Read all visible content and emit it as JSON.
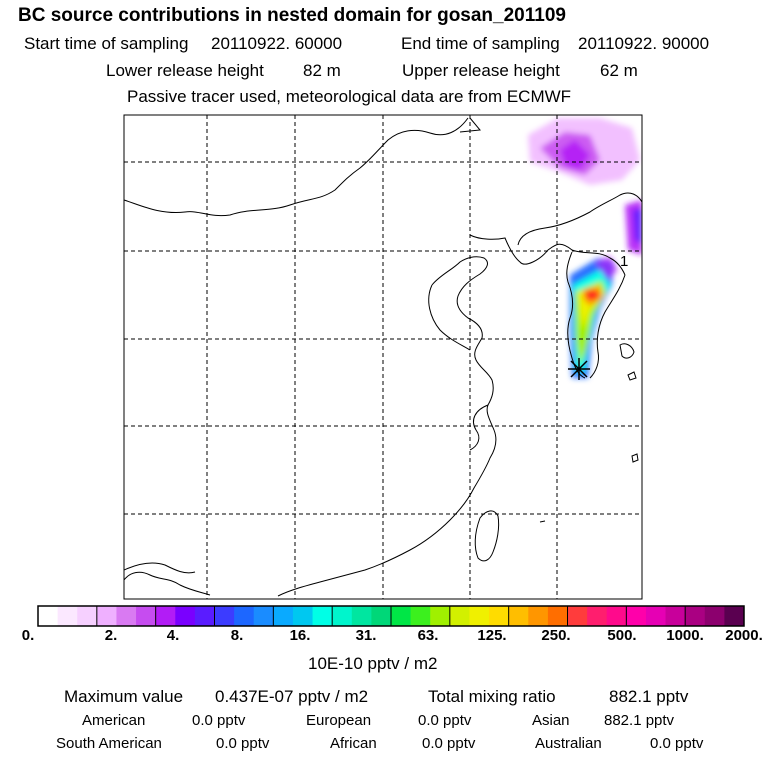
{
  "title": "BC  source contributions in nested domain for gosan_201109",
  "sampling": {
    "start_label": "Start time of sampling",
    "start_value": "20110922. 60000",
    "end_label": "End time of sampling",
    "end_value": "20110922. 90000"
  },
  "release": {
    "lower_label": "Lower release height",
    "lower_value": "82 m",
    "upper_label": "Upper release height",
    "upper_value": "62 m"
  },
  "tracer_note": "Passive tracer used, meteorological data are from ECMWF",
  "map": {
    "annotation": "1",
    "receptor_marker": "asterisk-marker"
  },
  "colorbar": {
    "tick_labels": [
      "0.",
      "2.",
      "4.",
      "8.",
      "16.",
      "31.",
      "63.",
      "125.",
      "250.",
      "500.",
      "1000.",
      "2000."
    ],
    "unit": "10E-10 pptv / m2",
    "colors": [
      "#ffffff",
      "#fbe8ff",
      "#f6d0ff",
      "#efb0ff",
      "#d97af2",
      "#c64cf0",
      "#b21cf6",
      "#7a00ff",
      "#5a1cff",
      "#3c3cff",
      "#1d67ff",
      "#1a8cff",
      "#0aaaff",
      "#00c8f0",
      "#00ffe6",
      "#00f5cc",
      "#00e6a0",
      "#00d778",
      "#00e646",
      "#3cf01e",
      "#a0f000",
      "#d2f000",
      "#f0f000",
      "#ffdc00",
      "#ffbe00",
      "#ff9600",
      "#ff6e00",
      "#ff3c3c",
      "#ff1e6e",
      "#ff0a8c",
      "#ff00aa",
      "#e600b4",
      "#c8009b",
      "#aa0082",
      "#8c006e",
      "#5a0050"
    ]
  },
  "stats": {
    "max_label": "Maximum value",
    "max_value": "0.437E-07 pptv / m2",
    "total_label": "Total mixing ratio",
    "total_value": "882.1 pptv"
  },
  "regions": [
    {
      "name": "American",
      "value": "0.0 pptv"
    },
    {
      "name": "European",
      "value": "0.0 pptv"
    },
    {
      "name": "Asian",
      "value": "882.1 pptv"
    },
    {
      "name": "South American",
      "value": "0.0 pptv"
    },
    {
      "name": "African",
      "value": "0.0 pptv"
    },
    {
      "name": "Australian",
      "value": "0.0 pptv"
    }
  ]
}
